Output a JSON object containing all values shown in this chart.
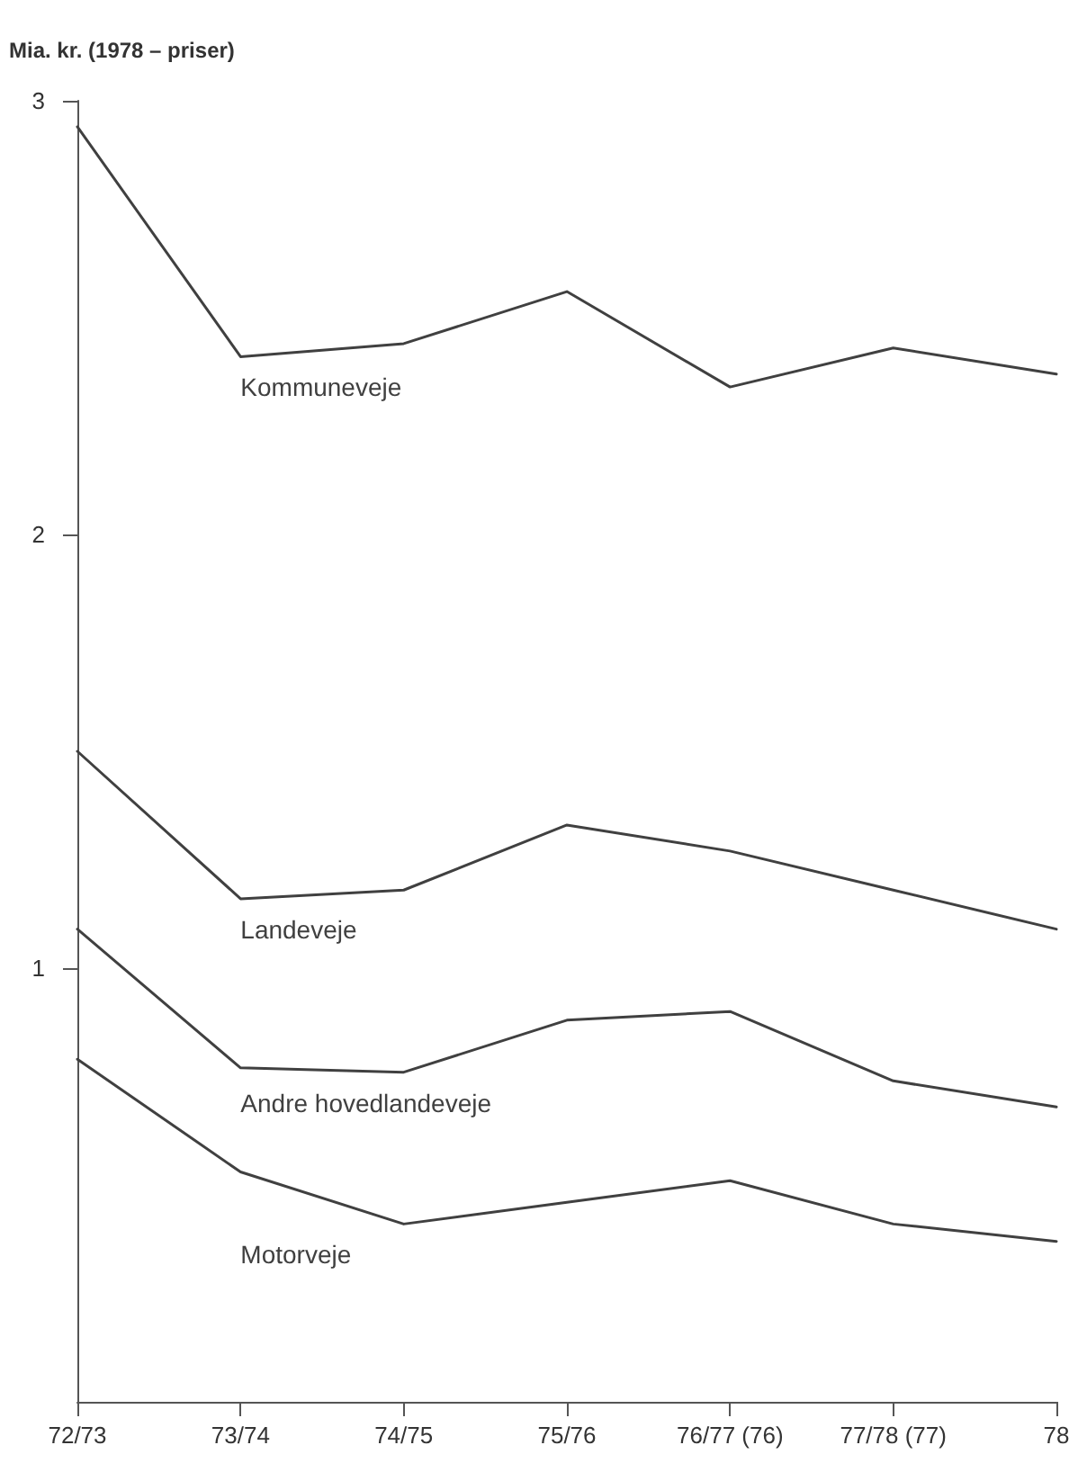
{
  "chart_data": {
    "type": "line",
    "ylabel": "Mia. kr. (1978 – priser)",
    "categories": [
      "72/73",
      "73/74",
      "74/75",
      "75/76",
      "76/77 (76)",
      "77/78 (77)",
      "78"
    ],
    "series": [
      {
        "name": "Kommuneveje",
        "color": "#404040",
        "values": [
          2.94,
          2.41,
          2.44,
          2.56,
          2.34,
          2.43,
          2.37
        ]
      },
      {
        "name": "Landeveje",
        "color": "#404040",
        "values": [
          1.5,
          1.16,
          1.18,
          1.33,
          1.27,
          1.18,
          1.09
        ]
      },
      {
        "name": "Andre hovedlandeveje",
        "color": "#404040",
        "values": [
          1.09,
          0.77,
          0.76,
          0.88,
          0.9,
          0.74,
          0.68
        ]
      },
      {
        "name": "Motorveje",
        "color": "#404040",
        "values": [
          0.79,
          0.53,
          0.41,
          0.46,
          0.51,
          0.41,
          0.37
        ]
      }
    ],
    "ylim": [
      0,
      3
    ],
    "yticks": [
      1,
      2,
      3
    ],
    "grid": false,
    "marker": "none",
    "line_style": "solid"
  }
}
